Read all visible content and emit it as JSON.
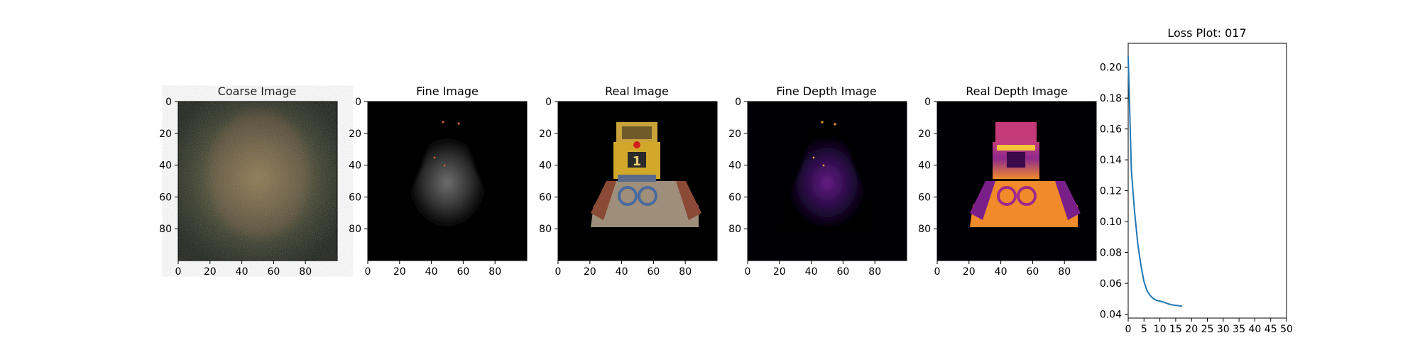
{
  "chart_data": [
    {
      "type": "image",
      "title": "Coarse Image",
      "xticks": [
        "0",
        "20",
        "40",
        "60",
        "80"
      ],
      "yticks": [
        "0",
        "20",
        "40",
        "60",
        "80"
      ],
      "xlim": [
        0,
        100
      ],
      "ylim": [
        100,
        0
      ],
      "content": "noisy dark RGB render with faint greenish/pinkish glow in center"
    },
    {
      "type": "image",
      "title": "Fine Image",
      "xticks": [
        "0",
        "20",
        "40",
        "60",
        "80"
      ],
      "yticks": [
        "0",
        "20",
        "40",
        "60",
        "80"
      ],
      "xlim": [
        0,
        100
      ],
      "ylim": [
        100,
        0
      ],
      "content": "dark RGB render with faint gray bulldozer-shaped silhouette"
    },
    {
      "type": "image",
      "title": "Real Image",
      "xticks": [
        "0",
        "20",
        "40",
        "60",
        "80"
      ],
      "yticks": [
        "0",
        "20",
        "40",
        "60",
        "80"
      ],
      "xlim": [
        0,
        100
      ],
      "ylim": [
        100,
        0
      ],
      "content": "yellow Lego bulldozer on black background"
    },
    {
      "type": "image",
      "title": "Fine Depth Image",
      "xticks": [
        "0",
        "20",
        "40",
        "60",
        "80"
      ],
      "yticks": [
        "0",
        "20",
        "40",
        "60",
        "80"
      ],
      "xlim": [
        0,
        100
      ],
      "ylim": [
        100,
        0
      ],
      "colormap": "inferno",
      "content": "faint purple depth silhouette"
    },
    {
      "type": "image",
      "title": "Real Depth Image",
      "xticks": [
        "0",
        "20",
        "40",
        "60",
        "80"
      ],
      "yticks": [
        "0",
        "20",
        "40",
        "60",
        "80"
      ],
      "xlim": [
        0,
        100
      ],
      "ylim": [
        100,
        0
      ],
      "colormap": "inferno",
      "content": "bulldozer depth map in magenta/orange/yellow"
    },
    {
      "type": "line",
      "title": "Loss Plot: 017",
      "xlim": [
        0,
        50
      ],
      "ylim": [
        0.0375,
        0.2155
      ],
      "xticks": [
        "0",
        "5",
        "10",
        "15",
        "20",
        "25",
        "30",
        "35",
        "40",
        "45",
        "50"
      ],
      "yticks": [
        "0.04",
        "0.06",
        "0.08",
        "0.10",
        "0.12",
        "0.14",
        "0.16",
        "0.18",
        "0.20"
      ],
      "color": "#1f77b4",
      "series": [
        {
          "x": [
            0,
            1,
            2,
            3,
            4,
            5,
            6,
            7,
            8,
            9,
            10,
            11,
            12,
            13,
            14,
            15,
            16,
            17
          ],
          "values": [
            0.207,
            0.133,
            0.107,
            0.086,
            0.072,
            0.061,
            0.055,
            0.052,
            0.05,
            0.049,
            0.0485,
            0.048,
            0.0472,
            0.0465,
            0.046,
            0.0458,
            0.0455,
            0.0453
          ]
        }
      ]
    }
  ]
}
